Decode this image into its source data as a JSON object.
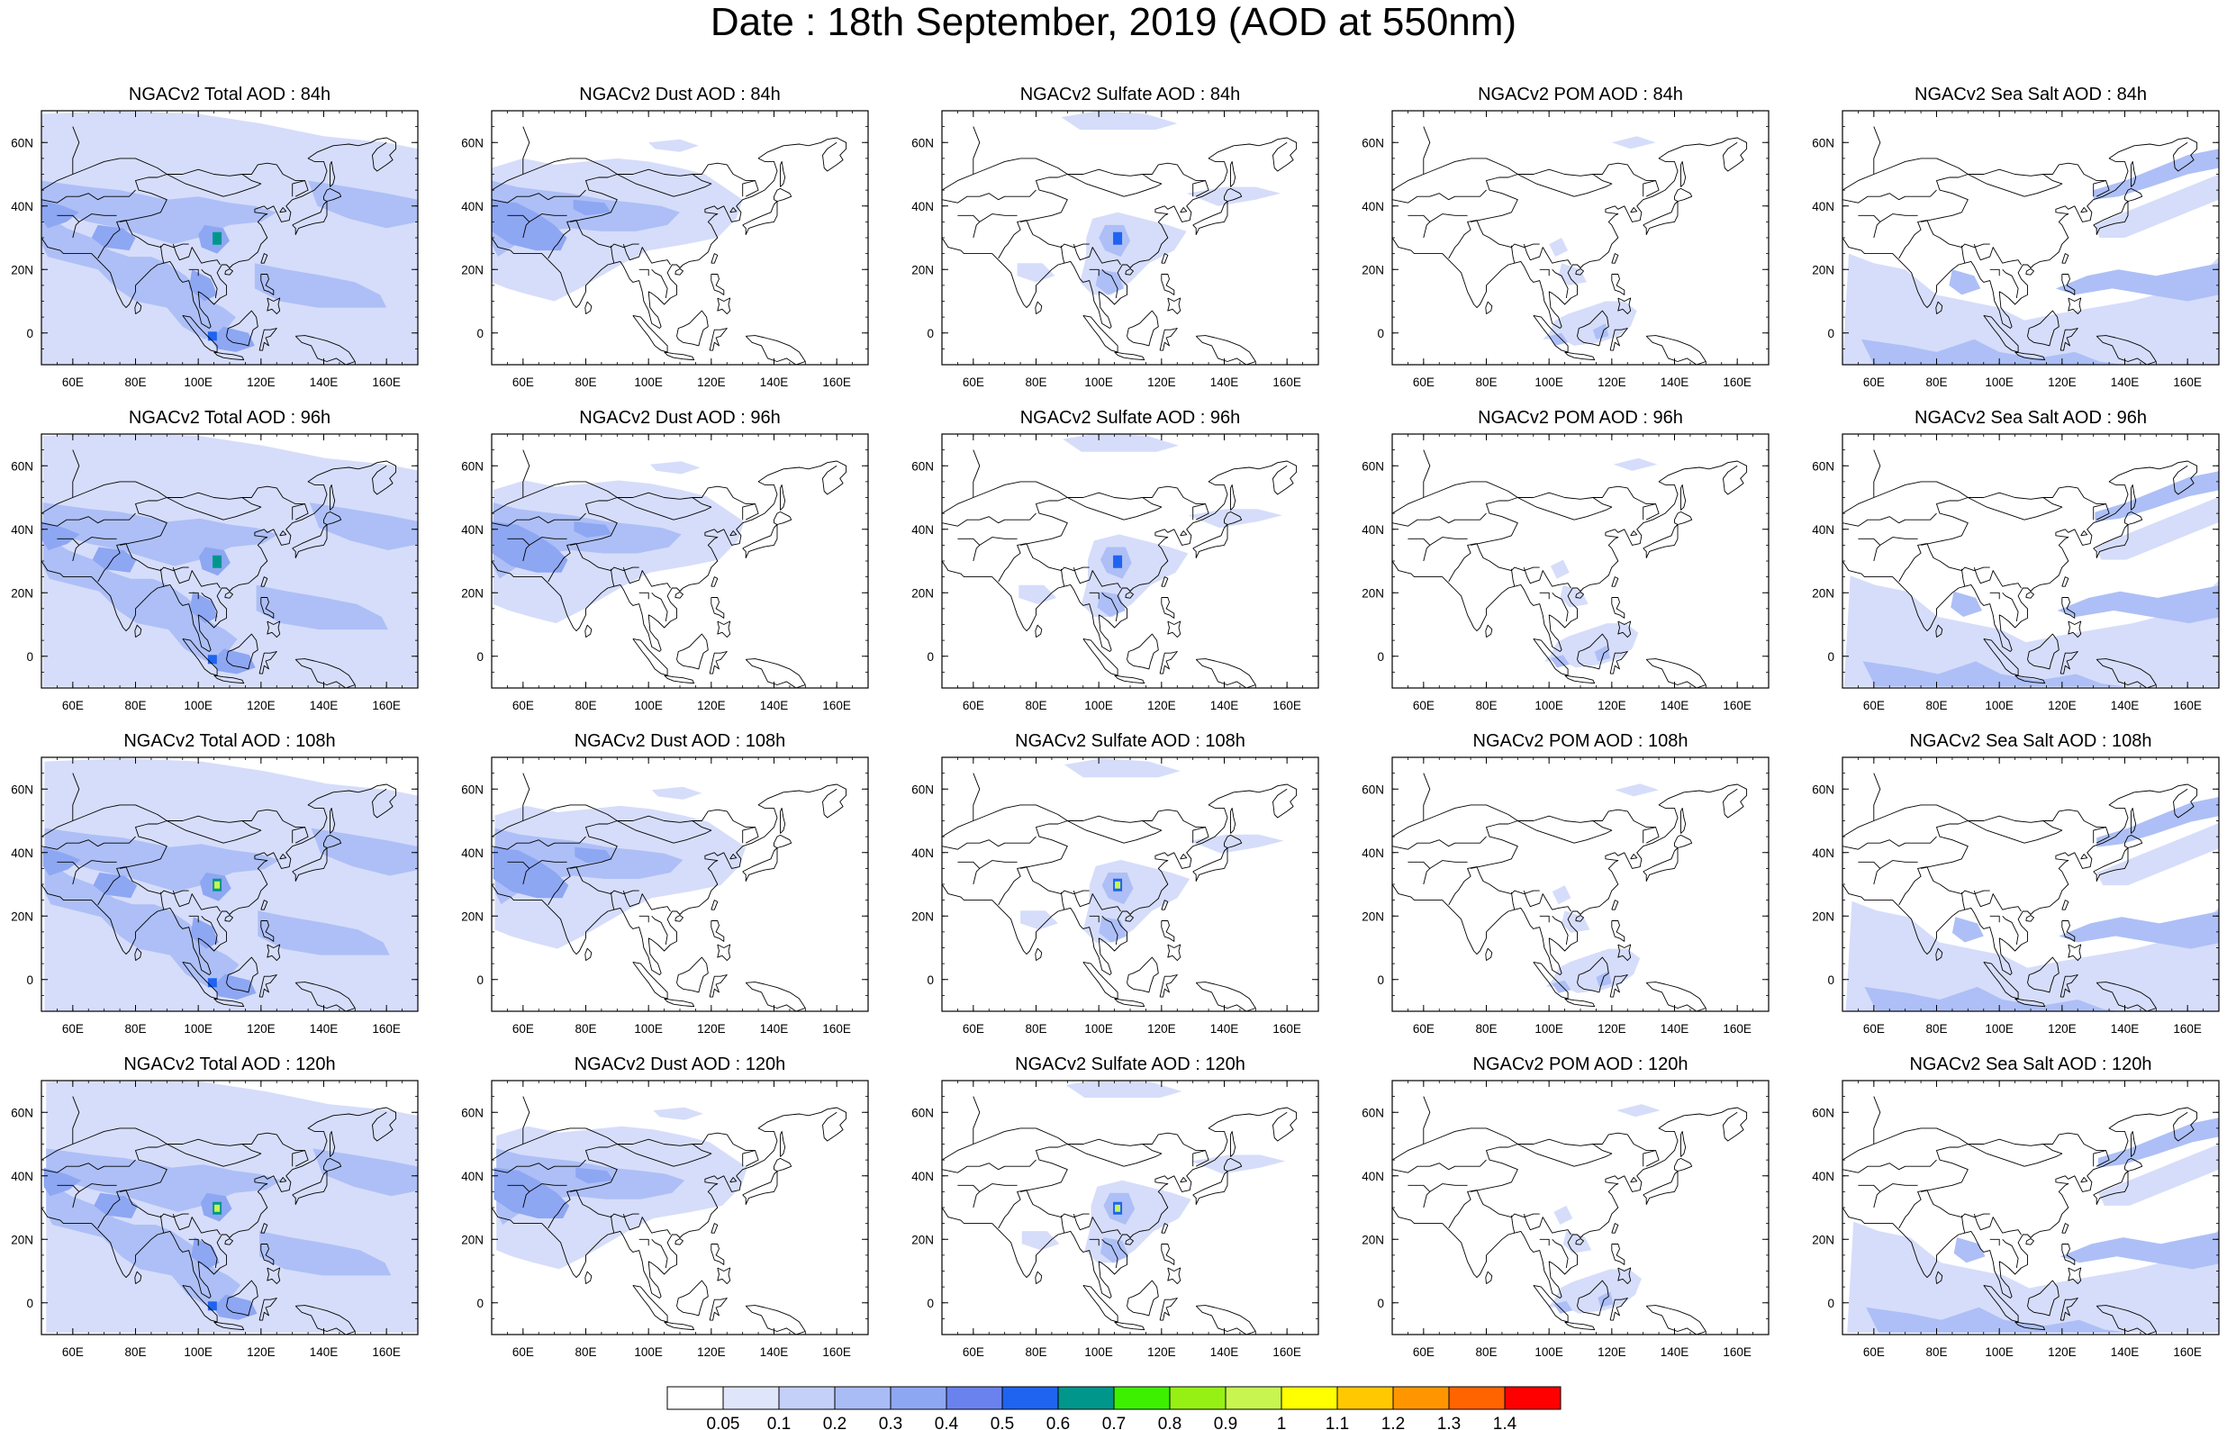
{
  "title": "Date : 18th September, 2019 (AOD at 550nm)",
  "rows": [
    "84h",
    "96h",
    "108h",
    "120h"
  ],
  "panels": [
    [
      "NGACv2 Total AOD : 84h",
      "NGACv2 Dust AOD : 84h",
      "NGACv2 Sulfate AOD : 84h",
      "NGACv2 POM AOD : 84h",
      "NGACv2 Sea Salt AOD : 84h"
    ],
    [
      "NGACv2 Total AOD : 96h",
      "NGACv2 Dust AOD : 96h",
      "NGACv2 Sulfate AOD : 96h",
      "NGACv2 POM AOD : 96h",
      "NGACv2 Sea Salt AOD : 96h"
    ],
    [
      "NGACv2 Total AOD : 108h",
      "NGACv2 Dust AOD : 108h",
      "NGACv2 Sulfate AOD : 108h",
      "NGACv2 POM AOD : 108h",
      "NGACv2 Sea Salt AOD : 108h"
    ],
    [
      "NGACv2 Total AOD : 120h",
      "NGACv2 Dust AOD : 120h",
      "NGACv2 Sulfate AOD : 120h",
      "NGACv2 POM AOD : 120h",
      "NGACv2 Sea Salt  AOD : 120h"
    ]
  ],
  "map": {
    "lon_range": [
      50,
      170
    ],
    "lat_range": [
      -10,
      70
    ],
    "lon_ticks": [
      "60E",
      "80E",
      "100E",
      "120E",
      "140E",
      "160E"
    ],
    "lat_ticks": [
      "60N",
      "40N",
      "20N",
      "0"
    ]
  },
  "colorbar": {
    "labels": [
      "0.05",
      "0.1",
      "0.2",
      "0.3",
      "0.4",
      "0.5",
      "0.6",
      "0.7",
      "0.8",
      "0.9",
      "1",
      "1.1",
      "1.2",
      "1.3",
      "1.4"
    ],
    "colors": [
      "#ffffff",
      "#dfe5fb",
      "#c4d0f8",
      "#a9bcf6",
      "#8ea7f3",
      "#6a82ee",
      "#1e64f0",
      "#00968c",
      "#3cf000",
      "#96f014",
      "#c8f550",
      "#ffff00",
      "#ffc800",
      "#ff9600",
      "#ff6400",
      "#ff0000"
    ]
  },
  "colors": {
    "light": "#d6ddfa",
    "medium": "#adbff6",
    "strong": "#8ea7f3",
    "coast": "#000000"
  }
}
